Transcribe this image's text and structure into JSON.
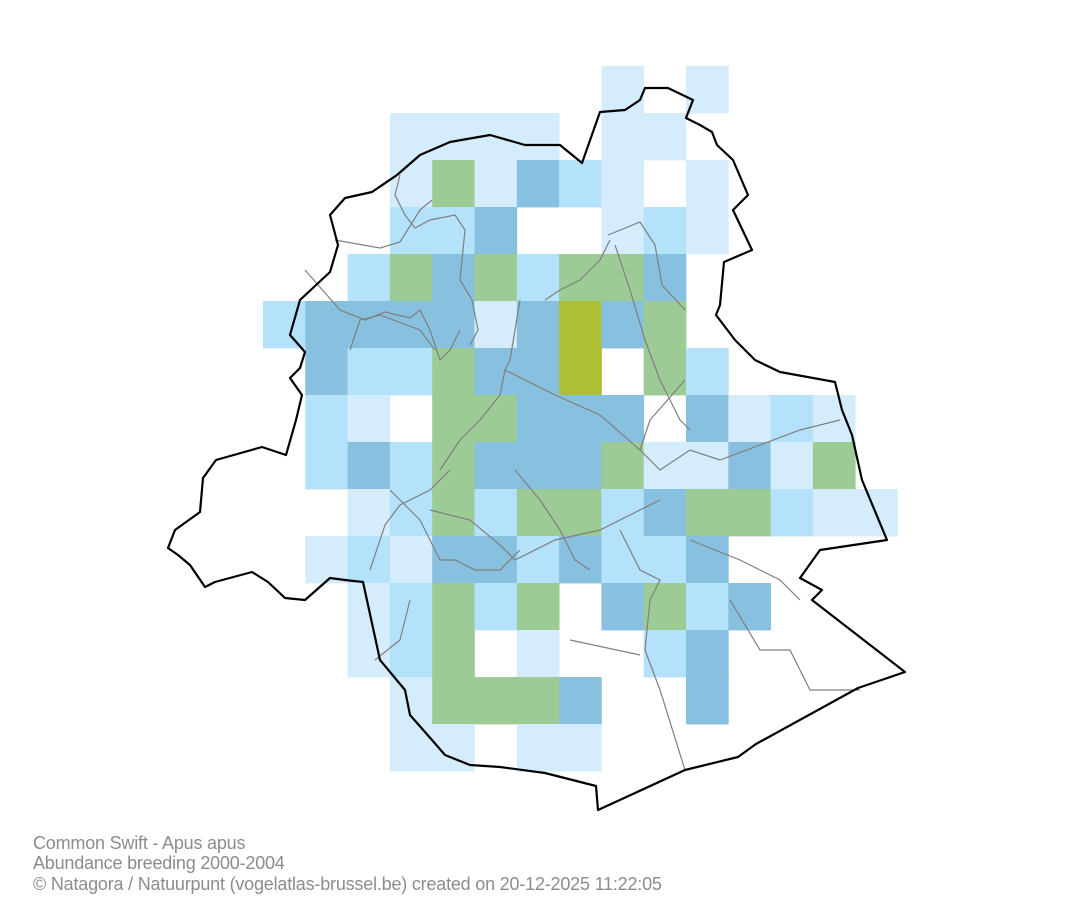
{
  "map": {
    "classes": {
      "L": "#d4ecfb",
      "M": "#b3e2fa",
      "D": "#88c0e0",
      "G": "#9ccb95",
      "O": "#adbf33"
    },
    "boundary_color": "#000000",
    "municipality_line_color": "#7f7f7f",
    "grid": [
      "........L.L....",
      "...LLLL.LL.....",
      "...LGLDML.L....",
      "...MMD..LML....",
      "..MGDGMGGD.....",
      "MDDDDLDODG.....",
      ".DMMGDDO.GM....",
      ".ML.GGDDD.DLML.",
      ".MDMGDDDGLLDLG.",
      "..LMGMGGMDGGMLL",
      ".LMLDDMDMMD....",
      "..LMGMG.DGMD...",
      "..LMG.L..MD....",
      "...LGGGD..D....",
      "...LL.LL......."
    ]
  },
  "caption": {
    "species": "Common Swift - Apus apus",
    "dataset": "Abundance breeding 2000-2004",
    "credit": "© Natagora / Natuurpunt (vogelatlas-brussel.be) created on 20-12-2025 11:22:05"
  }
}
